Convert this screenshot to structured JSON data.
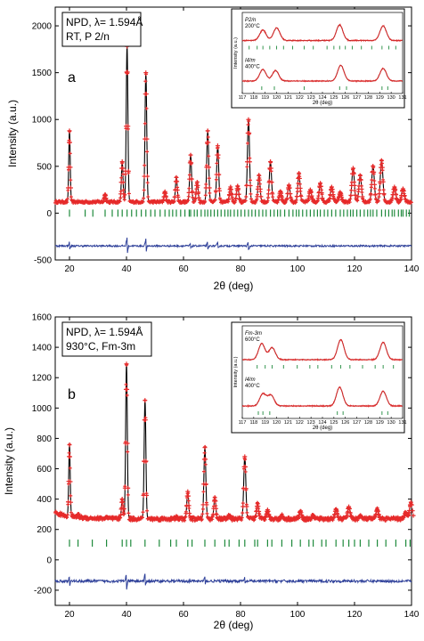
{
  "chart_data": [
    {
      "type": "scatter",
      "panel_letter": "a",
      "annotation_lines": [
        "NPD, λ= 1.594Å",
        "RT, P 2/n"
      ],
      "xlabel": "2θ (deg)",
      "ylabel": "Intensity (a.u.)",
      "xlim": [
        15,
        140
      ],
      "ylim": [
        -500,
        2200
      ],
      "x_ticks": [
        20,
        40,
        60,
        80,
        100,
        120,
        140
      ],
      "y_ticks": [
        -500,
        0,
        500,
        1000,
        1500,
        2000
      ],
      "baseline": 120,
      "difference_offset": -350,
      "peaks": [
        {
          "x": 20.0,
          "y": 880
        },
        {
          "x": 32.5,
          "y": 200
        },
        {
          "x": 38.5,
          "y": 550
        },
        {
          "x": 40.2,
          "y": 1780
        },
        {
          "x": 46.8,
          "y": 1500
        },
        {
          "x": 53.5,
          "y": 230
        },
        {
          "x": 57.5,
          "y": 380
        },
        {
          "x": 62.5,
          "y": 620
        },
        {
          "x": 64.8,
          "y": 330
        },
        {
          "x": 68.5,
          "y": 880
        },
        {
          "x": 72.0,
          "y": 720
        },
        {
          "x": 76.5,
          "y": 280
        },
        {
          "x": 79.0,
          "y": 290
        },
        {
          "x": 82.8,
          "y": 1000
        },
        {
          "x": 86.5,
          "y": 400
        },
        {
          "x": 90.5,
          "y": 550
        },
        {
          "x": 94.0,
          "y": 230
        },
        {
          "x": 97.0,
          "y": 300
        },
        {
          "x": 100.5,
          "y": 420
        },
        {
          "x": 104.5,
          "y": 250
        },
        {
          "x": 108.0,
          "y": 320
        },
        {
          "x": 112.0,
          "y": 280
        },
        {
          "x": 115.0,
          "y": 220
        },
        {
          "x": 119.5,
          "y": 480
        },
        {
          "x": 122.0,
          "y": 400
        },
        {
          "x": 126.5,
          "y": 500
        },
        {
          "x": 129.5,
          "y": 560
        },
        {
          "x": 134.0,
          "y": 280
        },
        {
          "x": 137.0,
          "y": 260
        }
      ],
      "bragg_y": 0,
      "bragg_positions": [
        20.0,
        25.5,
        28.2,
        32.5,
        35.0,
        37.0,
        38.5,
        40.2,
        41.8,
        43.5,
        45.2,
        46.8,
        48.5,
        50.0,
        51.8,
        53.5,
        55.0,
        56.2,
        57.5,
        59.0,
        60.5,
        62.0,
        62.5,
        63.8,
        64.8,
        66.2,
        67.5,
        68.5,
        69.6,
        70.8,
        72.0,
        73.2,
        74.5,
        75.6,
        76.5,
        77.8,
        79.0,
        80.2,
        81.5,
        82.8,
        84.0,
        85.2,
        86.5,
        87.8,
        89.0,
        90.5,
        91.8,
        93.0,
        94.0,
        95.5,
        97.0,
        98.4,
        99.6,
        100.5,
        101.8,
        103.2,
        104.5,
        105.8,
        107.0,
        108.0,
        109.4,
        110.6,
        112.0,
        113.4,
        115.0,
        116.2,
        117.5,
        118.6,
        119.5,
        120.8,
        122.0,
        123.4,
        124.6,
        125.6,
        126.5,
        127.8,
        129.5,
        130.8,
        132.0,
        133.2,
        134.0,
        135.4,
        136.4,
        137.0,
        138.2,
        139.2
      ],
      "inset": {
        "xlabel": "2θ (deg)",
        "ylabel": "Intensity (a.u.)",
        "xlim": [
          117,
          131
        ],
        "x_ticks": [
          117,
          118,
          119,
          120,
          121,
          122,
          123,
          124,
          125,
          126,
          127,
          128,
          129,
          130,
          131
        ],
        "traces": [
          {
            "label_line1": "I4/m",
            "label_line2": "400°C",
            "peaks": [
              {
                "x": 118.8,
                "h": 0.55
              },
              {
                "x": 119.9,
                "h": 0.5
              },
              {
                "x": 125.6,
                "h": 0.75
              },
              {
                "x": 129.3,
                "h": 0.6
              }
            ],
            "ticks": [
              118.7,
              119.8,
              122.4,
              125.5,
              126.1,
              129.2,
              129.7
            ]
          },
          {
            "label_line1": "P2/n",
            "label_line2": "200°C",
            "peaks": [
              {
                "x": 118.8,
                "h": 0.5
              },
              {
                "x": 120.0,
                "h": 0.6
              },
              {
                "x": 125.5,
                "h": 0.75
              },
              {
                "x": 129.3,
                "h": 0.7
              }
            ],
            "ticks": [
              117.6,
              118.3,
              118.8,
              119.4,
              120.0,
              120.6,
              121.4,
              122.4,
              123.2,
              124.4,
              125.0,
              125.5,
              126.0,
              126.6,
              127.4,
              128.3,
              129.2,
              129.8,
              130.4
            ]
          }
        ]
      }
    },
    {
      "type": "scatter",
      "panel_letter": "b",
      "annotation_lines": [
        "NPD, λ= 1.594Å",
        "930°C, Fm-3m"
      ],
      "xlabel": "2θ (deg)",
      "ylabel": "Intensity (a.u.)",
      "xlim": [
        15,
        140
      ],
      "ylim": [
        -300,
        1600
      ],
      "x_ticks": [
        20,
        40,
        60,
        80,
        100,
        120,
        140
      ],
      "y_ticks": [
        -200,
        0,
        200,
        400,
        600,
        800,
        1000,
        1200,
        1400,
        1600
      ],
      "baseline": 270,
      "baseline_start": 310,
      "difference_offset": -140,
      "peaks": [
        {
          "x": 20.0,
          "y": 740
        },
        {
          "x": 23.0,
          "y": 290
        },
        {
          "x": 33.0,
          "y": 280
        },
        {
          "x": 38.5,
          "y": 400
        },
        {
          "x": 40.0,
          "y": 1290
        },
        {
          "x": 46.5,
          "y": 1050
        },
        {
          "x": 57.5,
          "y": 280
        },
        {
          "x": 61.5,
          "y": 450
        },
        {
          "x": 67.5,
          "y": 740
        },
        {
          "x": 71.0,
          "y": 410
        },
        {
          "x": 76.0,
          "y": 290
        },
        {
          "x": 81.5,
          "y": 680
        },
        {
          "x": 86.0,
          "y": 370
        },
        {
          "x": 89.5,
          "y": 330
        },
        {
          "x": 94.5,
          "y": 290
        },
        {
          "x": 101.0,
          "y": 320
        },
        {
          "x": 105.5,
          "y": 290
        },
        {
          "x": 113.5,
          "y": 330
        },
        {
          "x": 118.0,
          "y": 350
        },
        {
          "x": 122.0,
          "y": 290
        },
        {
          "x": 128.0,
          "y": 330
        },
        {
          "x": 138.0,
          "y": 310
        },
        {
          "x": 139.8,
          "y": 380
        }
      ],
      "bragg_y": 110,
      "bragg_positions": [
        20.0,
        23.0,
        28.0,
        33.0,
        38.5,
        40.0,
        41.5,
        46.5,
        51.5,
        55.5,
        57.5,
        61.5,
        63.0,
        67.5,
        71.0,
        74.5,
        76.0,
        79.5,
        81.5,
        85.0,
        86.0,
        89.5,
        91.0,
        94.5,
        98.0,
        101.0,
        104.0,
        105.5,
        108.5,
        110.0,
        113.5,
        116.0,
        118.0,
        120.0,
        122.0,
        125.0,
        128.0,
        131.0,
        134.5,
        138.0,
        139.5
      ],
      "inset": {
        "xlabel": "2θ (deg)",
        "ylabel": "Intensity (a.u.)",
        "xlim": [
          117,
          131
        ],
        "x_ticks": [
          117,
          118,
          119,
          120,
          121,
          122,
          123,
          124,
          125,
          126,
          127,
          128,
          129,
          130,
          131
        ],
        "traces": [
          {
            "label_line1": "I4/m",
            "label_line2": "400°C",
            "peaks": [
              {
                "x": 118.8,
                "h": 0.45
              },
              {
                "x": 119.5,
                "h": 0.4
              },
              {
                "x": 125.5,
                "h": 0.7
              },
              {
                "x": 129.3,
                "h": 0.55
              }
            ],
            "ticks": [
              118.4,
              118.8,
              119.4,
              125.3,
              125.8,
              129.2,
              129.7
            ]
          },
          {
            "label_line1": "Fm-3m",
            "label_line2": "600°C",
            "peaks": [
              {
                "x": 118.7,
                "h": 0.6
              },
              {
                "x": 119.6,
                "h": 0.45
              },
              {
                "x": 125.6,
                "h": 0.75
              },
              {
                "x": 129.3,
                "h": 0.65
              }
            ],
            "ticks": [
              118.3,
              119.0,
              119.6,
              120.6,
              121.8,
              122.9,
              123.6,
              124.8,
              125.6,
              126.4,
              127.5,
              128.6,
              129.3,
              130.2
            ]
          }
        ]
      }
    }
  ],
  "colors": {
    "observed": "#e62b2b",
    "calculated": "#000000",
    "difference": "#2d3f99",
    "bragg": "#1f8a3c",
    "axis": "#000000"
  }
}
